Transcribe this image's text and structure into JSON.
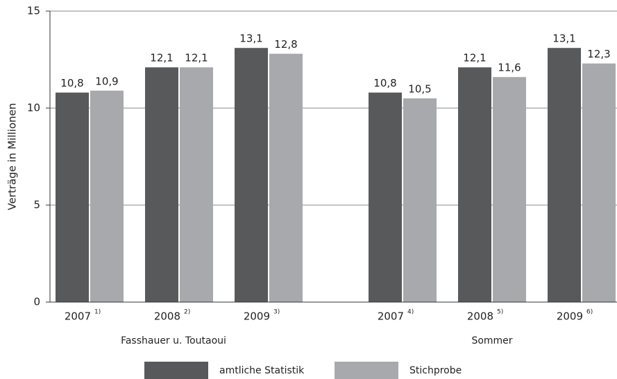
{
  "chart_data": {
    "type": "bar",
    "y_label": "Verträge in Millionen",
    "categories": [
      "2007",
      "2008",
      "2009",
      "2007",
      "2008",
      "2009"
    ],
    "footnotes": [
      "1)",
      "2)",
      "3)",
      "4)",
      "5)",
      "6)"
    ],
    "groups": [
      "Fasshauer u. Toutaoui",
      "Sommer"
    ],
    "series": [
      {
        "name": "amtliche Statistik",
        "color": "#58595b",
        "values": [
          10.8,
          12.1,
          13.1,
          10.8,
          12.1,
          13.1
        ],
        "value_labels": [
          "10,8",
          "12,1",
          "13,1",
          "10,8",
          "12,1",
          "13,1"
        ]
      },
      {
        "name": "Stichprobe",
        "color": "#a7a9ac",
        "values": [
          10.9,
          12.1,
          12.8,
          10.5,
          11.6,
          12.3
        ],
        "value_labels": [
          "10,9",
          "12,1",
          "12,8",
          "10,5",
          "11,6",
          "12,3"
        ]
      }
    ],
    "ylim": [
      0,
      15
    ],
    "yticks": [
      0,
      5,
      10,
      15
    ],
    "grid": true
  }
}
